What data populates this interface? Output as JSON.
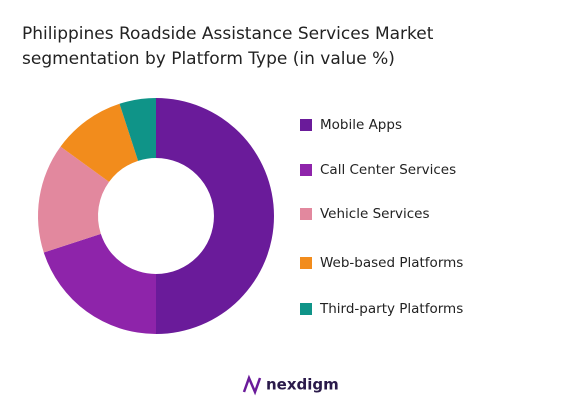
{
  "chart_data": {
    "type": "donut",
    "title": "Philippines Roadside Assistance Services Market",
    "subtitle": "segmentation by Platform Type (in value %)",
    "categories": [
      "Mobile Apps",
      "Call Center Services",
      "Vehicle Services",
      "Web-based Platforms",
      "Third-party Platforms"
    ],
    "values": [
      50,
      20,
      15,
      10,
      5
    ],
    "colors": [
      "#6a1b9a",
      "#8e24aa",
      "#e2889e",
      "#f28c1c",
      "#0f9488"
    ],
    "legend": "right"
  },
  "branding": {
    "logo": "nexdigm"
  }
}
